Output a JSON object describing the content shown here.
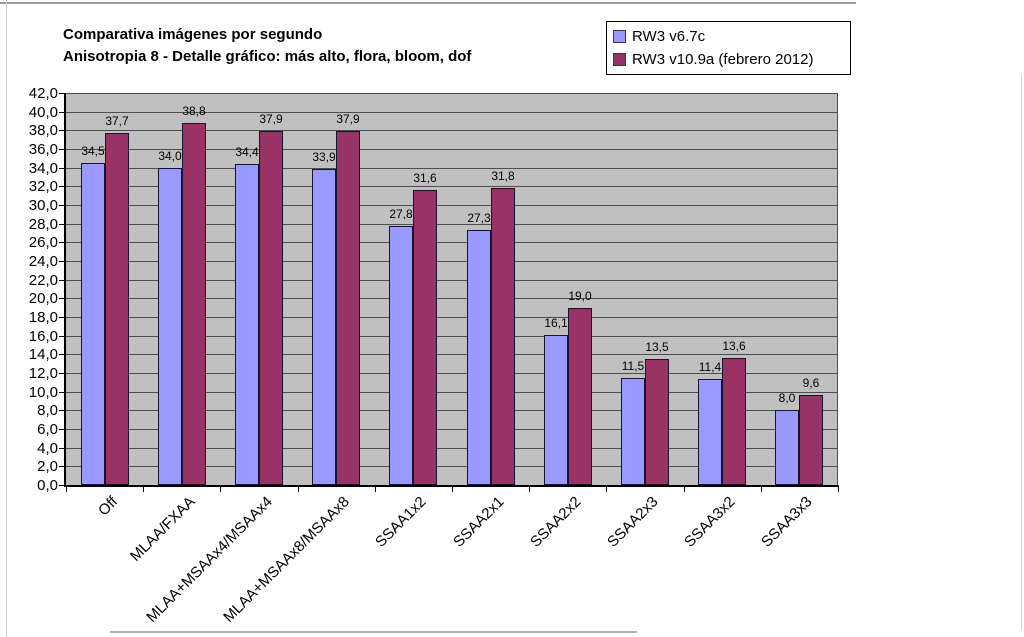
{
  "chart": {
    "title_line1": "Comparativa imágenes por segundo",
    "title_line2": "Anisotropia 8 - Detalle gráfico: más alto, flora, bloom, dof"
  },
  "chart_data": {
    "type": "bar",
    "title": "Comparativa imágenes por segundo",
    "subtitle": "Anisotropia 8 - Detalle gráfico: más alto, flora, bloom, dof",
    "categories": [
      "Off",
      "MLAA/FXAA",
      "MLAA+MSAAx4/MSAAx4",
      "MLAA+MSAAx8/MSAAx8",
      "SSAA1x2",
      "SSAA2x1",
      "SSAA2x2",
      "SSAA2x3",
      "SSAA3x2",
      "SSAA3x3"
    ],
    "series": [
      {
        "name": "RW3 v6.7c",
        "color": "#9999ff",
        "values": [
          34.5,
          34.0,
          34.4,
          33.9,
          27.8,
          27.3,
          16.1,
          11.5,
          11.4,
          8.0
        ]
      },
      {
        "name": "RW3 v10.9a (febrero 2012)",
        "color": "#993366",
        "values": [
          37.7,
          38.8,
          37.9,
          37.9,
          31.6,
          31.8,
          19.0,
          13.5,
          13.6,
          9.6
        ]
      }
    ],
    "xlabel": "",
    "ylabel": "",
    "ylim": [
      0,
      42
    ],
    "ytick_step": 2,
    "decimal_separator": ",",
    "grid": true,
    "data_labels": true,
    "legend_position": "top-right",
    "plot_background": "#c0c0c0",
    "gridline_color": "#4d4d4d",
    "bar_border_color": "#14142e"
  }
}
